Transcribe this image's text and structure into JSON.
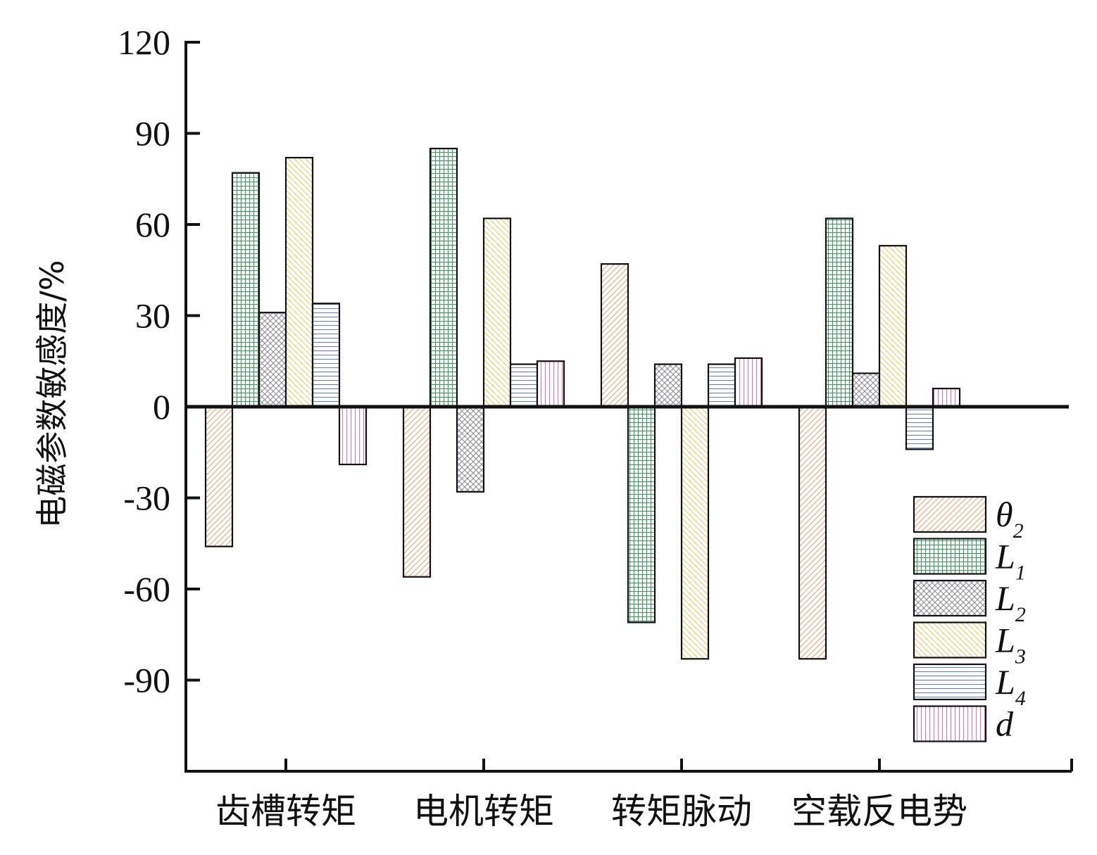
{
  "chart_data": {
    "type": "bar",
    "ylabel": "电磁参数敏感度/%",
    "xlabel": "",
    "ylim": [
      -120,
      120
    ],
    "yticks": [
      120,
      90,
      60,
      30,
      0,
      -30,
      -60,
      -90
    ],
    "yticks_labels": [
      "120",
      "90",
      "60",
      "30",
      "0",
      "-30",
      "-60",
      "-90"
    ],
    "categories": [
      "齿槽转矩",
      "电机转矩",
      "转矩脉动",
      "空载反电势"
    ],
    "series": [
      {
        "name": "θ",
        "sub": "2",
        "color": "#f0a070",
        "pattern": "diag-right",
        "values": [
          -46,
          -56,
          47,
          -83
        ]
      },
      {
        "name": "L",
        "sub": "1",
        "color": "#3a9a5a",
        "pattern": "grid",
        "values": [
          77,
          85,
          -71,
          62
        ]
      },
      {
        "name": "L",
        "sub": "2",
        "color": "#8a8a9a",
        "pattern": "crosshatch",
        "values": [
          31,
          -28,
          14,
          11
        ]
      },
      {
        "name": "L",
        "sub": "3",
        "color": "#e8d060",
        "pattern": "diag-left",
        "values": [
          82,
          62,
          -83,
          53
        ]
      },
      {
        "name": "L",
        "sub": "4",
        "color": "#6080c8",
        "pattern": "horizontal",
        "values": [
          34,
          14,
          14,
          -14
        ]
      },
      {
        "name": "d",
        "sub": "",
        "color": "#e070b0",
        "pattern": "vertical",
        "values": [
          -19,
          15,
          16,
          6
        ]
      }
    ],
    "legend_position": "bottom-right",
    "grid": false
  }
}
